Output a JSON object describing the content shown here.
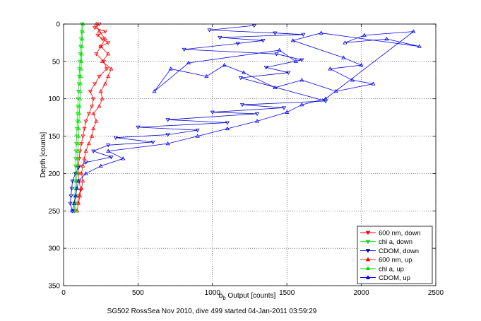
{
  "chart_data": {
    "type": "scatter",
    "xlabel": "b_b Output [counts]",
    "xlabel_main": "b",
    "xlabel_sub": "b",
    "xlabel_rest": " Output [counts]",
    "ylabel": "Depth [counts]",
    "caption": "SG502 RossSea Nov 2010, dive 499 started 04-Jan-2011 03:59:29",
    "xlim": [
      0,
      2500
    ],
    "ylim": [
      0,
      350
    ],
    "y_reversed": true,
    "grid": true,
    "grid_style": "dotted",
    "legend_position": "bottom-right",
    "xticks": [
      0,
      500,
      1000,
      1500,
      2000,
      2500
    ],
    "yticks": [
      0,
      50,
      100,
      150,
      200,
      250,
      300,
      350
    ],
    "series": [
      {
        "name": "600 nm, down",
        "color": "#ff0000",
        "marker": "triangle-down",
        "connected": true,
        "points": [
          [
            240,
            0
          ],
          [
            210,
            5
          ],
          [
            280,
            10
          ],
          [
            230,
            15
          ],
          [
            260,
            20
          ],
          [
            300,
            25
          ],
          [
            250,
            30
          ],
          [
            220,
            40
          ],
          [
            270,
            50
          ],
          [
            290,
            60
          ],
          [
            240,
            70
          ],
          [
            210,
            80
          ],
          [
            180,
            90
          ],
          [
            200,
            100
          ],
          [
            190,
            110
          ],
          [
            170,
            120
          ],
          [
            150,
            130
          ],
          [
            140,
            140
          ],
          [
            130,
            150
          ],
          [
            120,
            160
          ],
          [
            110,
            170
          ],
          [
            105,
            180
          ],
          [
            100,
            190
          ],
          [
            100,
            200
          ],
          [
            105,
            210
          ],
          [
            115,
            222
          ],
          [
            100,
            230
          ],
          [
            95,
            240
          ]
        ]
      },
      {
        "name": "chl a, down",
        "color": "#00dd00",
        "marker": "triangle-down",
        "connected": true,
        "points": [
          [
            125,
            0
          ],
          [
            122,
            10
          ],
          [
            118,
            20
          ],
          [
            115,
            30
          ],
          [
            112,
            40
          ],
          [
            110,
            50
          ],
          [
            107,
            60
          ],
          [
            105,
            70
          ],
          [
            103,
            80
          ],
          [
            100,
            90
          ],
          [
            98,
            100
          ],
          [
            96,
            110
          ],
          [
            94,
            120
          ],
          [
            92,
            130
          ],
          [
            90,
            140
          ],
          [
            88,
            150
          ],
          [
            86,
            160
          ],
          [
            84,
            170
          ],
          [
            82,
            180
          ],
          [
            80,
            190
          ],
          [
            79,
            200
          ],
          [
            78,
            210
          ],
          [
            77,
            220
          ],
          [
            76,
            230
          ],
          [
            75,
            240
          ],
          [
            74,
            250
          ]
        ]
      },
      {
        "name": "CDOM, down",
        "color": "#0000cc",
        "marker": "triangle-down",
        "connected": true,
        "points": [
          [
            1280,
            2
          ],
          [
            980,
            8
          ],
          [
            1420,
            12
          ],
          [
            1610,
            14
          ],
          [
            1050,
            18
          ],
          [
            1340,
            22
          ],
          [
            1170,
            26
          ],
          [
            810,
            34
          ],
          [
            1430,
            40
          ],
          [
            1600,
            48
          ],
          [
            1360,
            58
          ],
          [
            1510,
            65
          ],
          [
            1190,
            72
          ],
          [
            1760,
            103
          ],
          [
            1200,
            108
          ],
          [
            1480,
            112
          ],
          [
            1000,
            118
          ],
          [
            1300,
            120
          ],
          [
            700,
            128
          ],
          [
            1100,
            132
          ],
          [
            500,
            138
          ],
          [
            900,
            142
          ],
          [
            700,
            148
          ],
          [
            350,
            152
          ],
          [
            600,
            158
          ],
          [
            300,
            162
          ],
          [
            200,
            170
          ],
          [
            320,
            178
          ],
          [
            150,
            185
          ],
          [
            100,
            192
          ],
          [
            80,
            200
          ],
          [
            60,
            210
          ],
          [
            55,
            220
          ],
          [
            50,
            230
          ],
          [
            45,
            240
          ],
          [
            60,
            250
          ]
        ]
      },
      {
        "name": "600 nm, up",
        "color": "#ff0000",
        "marker": "triangle-up",
        "connected": true,
        "points": [
          [
            90,
            250
          ],
          [
            100,
            240
          ],
          [
            110,
            230
          ],
          [
            120,
            220
          ],
          [
            130,
            210
          ],
          [
            120,
            200
          ],
          [
            130,
            190
          ],
          [
            140,
            180
          ],
          [
            150,
            170
          ],
          [
            170,
            160
          ],
          [
            190,
            150
          ],
          [
            200,
            140
          ],
          [
            220,
            130
          ],
          [
            200,
            120
          ],
          [
            240,
            110
          ],
          [
            260,
            100
          ],
          [
            250,
            90
          ],
          [
            280,
            80
          ],
          [
            300,
            70
          ],
          [
            320,
            60
          ],
          [
            260,
            50
          ],
          [
            300,
            40
          ],
          [
            250,
            30
          ],
          [
            280,
            20
          ],
          [
            240,
            10
          ],
          [
            220,
            0
          ]
        ]
      },
      {
        "name": "chl a, up",
        "color": "#00dd00",
        "marker": "triangle-up",
        "connected": true,
        "points": [
          [
            80,
            250
          ],
          [
            82,
            240
          ],
          [
            84,
            230
          ],
          [
            86,
            220
          ],
          [
            88,
            210
          ],
          [
            90,
            200
          ],
          [
            92,
            190
          ],
          [
            94,
            180
          ],
          [
            96,
            170
          ],
          [
            98,
            160
          ],
          [
            100,
            150
          ],
          [
            102,
            140
          ],
          [
            104,
            130
          ],
          [
            106,
            120
          ],
          [
            108,
            110
          ],
          [
            110,
            100
          ],
          [
            112,
            90
          ],
          [
            114,
            80
          ],
          [
            116,
            70
          ],
          [
            118,
            60
          ],
          [
            120,
            50
          ],
          [
            122,
            40
          ],
          [
            124,
            30
          ],
          [
            126,
            20
          ],
          [
            128,
            10
          ],
          [
            130,
            0
          ]
        ]
      },
      {
        "name": "CDOM, up",
        "color": "#0000ff",
        "marker": "triangle-up",
        "connected": true,
        "points": [
          [
            60,
            250
          ],
          [
            70,
            240
          ],
          [
            80,
            230
          ],
          [
            90,
            220
          ],
          [
            100,
            210
          ],
          [
            150,
            200
          ],
          [
            250,
            190
          ],
          [
            400,
            180
          ],
          [
            300,
            170
          ],
          [
            700,
            160
          ],
          [
            900,
            150
          ],
          [
            1100,
            140
          ],
          [
            1300,
            130
          ],
          [
            1500,
            118
          ],
          [
            1600,
            108
          ],
          [
            1760,
            100
          ],
          [
            2350,
            10
          ],
          [
            2020,
            15
          ],
          [
            1890,
            25
          ],
          [
            2170,
            20
          ],
          [
            2390,
            30
          ],
          [
            1730,
            12
          ],
          [
            1540,
            22
          ],
          [
            1880,
            45
          ],
          [
            2000,
            55
          ],
          [
            1790,
            60
          ],
          [
            1940,
            75
          ],
          [
            2080,
            80
          ],
          [
            1830,
            90
          ],
          [
            1600,
            75
          ],
          [
            1420,
            85
          ],
          [
            1210,
            65
          ],
          [
            1080,
            55
          ],
          [
            960,
            70
          ],
          [
            720,
            60
          ],
          [
            610,
            90
          ],
          [
            840,
            52
          ],
          [
            1450,
            35
          ],
          [
            1560,
            50
          ]
        ]
      }
    ]
  }
}
